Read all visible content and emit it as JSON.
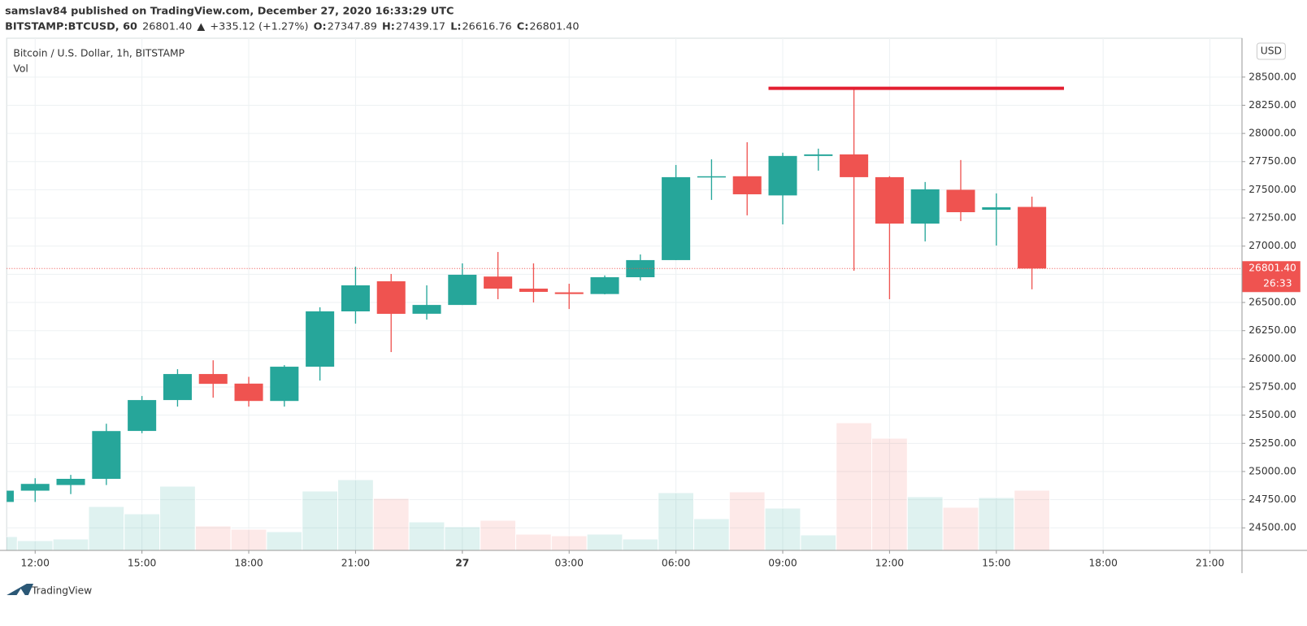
{
  "header": {
    "publisher": "samslav84 published on TradingView.com, December 27, 2020 16:33:29 UTC",
    "symbol": "BITSTAMP:BTCUSD, 60",
    "last": "26801.40",
    "arrow": "▲",
    "change": "+335.12 (+1.27%)",
    "o_label": "O:",
    "o": "27347.89",
    "h_label": "H:",
    "h": "27439.17",
    "l_label": "L:",
    "l": "26616.76",
    "c_label": "C:",
    "c": "26801.40"
  },
  "chart_data": {
    "type": "candlestick",
    "legend_title": "Bitcoin / U.S. Dollar, 1h, BITSTAMP",
    "volume_label": "Vol",
    "currency": "USD",
    "countdown": "26:33",
    "x": [
      11,
      12,
      13,
      14,
      15,
      16,
      17,
      18,
      19,
      20,
      21,
      22,
      23,
      24,
      25,
      26,
      27,
      28,
      29,
      30,
      31,
      32,
      33,
      34,
      35,
      36,
      37,
      38,
      39,
      40
    ],
    "open": [
      24730,
      24830,
      24880,
      24935,
      25360,
      25634,
      25865,
      25780,
      25626,
      25930,
      26421,
      26688,
      26400,
      26478,
      26730,
      26623,
      26590,
      26575,
      26724,
      26876,
      27612,
      27620,
      27450,
      27800,
      27814,
      27612,
      27200,
      27500,
      27323,
      27347.89
    ],
    "high": [
      24850,
      24940,
      24970,
      25424,
      25670,
      25908,
      25987,
      25840,
      25944,
      26457,
      26818,
      26753,
      26652,
      26847,
      26948,
      26847,
      26666,
      26740,
      26926,
      27720,
      27770,
      27922,
      27829,
      27865,
      28406,
      27620,
      27569,
      27764,
      27468,
      27439.17
    ],
    "low": [
      24720,
      24730,
      24800,
      24880,
      25340,
      25576,
      25655,
      25576,
      25576,
      25807,
      26312,
      26060,
      26348,
      26478,
      26529,
      26500,
      26442,
      26572,
      26695,
      26876,
      27410,
      27273,
      27193,
      27670,
      26782,
      26529,
      27042,
      27222,
      27005,
      26616.76
    ],
    "close": [
      24830,
      24890,
      24935,
      25359,
      25634,
      25865,
      25778,
      25626,
      25930,
      26421,
      26652,
      26399,
      26478,
      26746,
      26623,
      26594,
      26575,
      26724,
      26876,
      27612,
      27620,
      27460,
      27800,
      27814,
      27612,
      27200,
      27504,
      27301,
      27345,
      26801.4
    ],
    "close_label": "26801.40",
    "volume": [
      17,
      12,
      14,
      54,
      45,
      79,
      30,
      26,
      23,
      73,
      87,
      64,
      35,
      29,
      37,
      20,
      18,
      20,
      14,
      71,
      39,
      72,
      52,
      19,
      157,
      138,
      66,
      53,
      65,
      74
    ],
    "up_color": "#26a69a",
    "down_color": "#ef5350",
    "xlim": [
      11.2,
      45.9
    ],
    "xticks": [
      {
        "value": 12,
        "label": "12:00"
      },
      {
        "value": 15,
        "label": "15:00"
      },
      {
        "value": 18,
        "label": "18:00"
      },
      {
        "value": 21,
        "label": "21:00"
      },
      {
        "value": 24,
        "label": "27"
      },
      {
        "value": 27,
        "label": "03:00"
      },
      {
        "value": 30,
        "label": "06:00"
      },
      {
        "value": 33,
        "label": "09:00"
      },
      {
        "value": 36,
        "label": "12:00"
      },
      {
        "value": 39,
        "label": "15:00"
      },
      {
        "value": 42,
        "label": "18:00"
      },
      {
        "value": 45,
        "label": "21:00"
      }
    ],
    "ylim": [
      24300,
      28845
    ],
    "yticks": [
      {
        "value": 24500,
        "label": "24500.00"
      },
      {
        "value": 24750,
        "label": "24750.00"
      },
      {
        "value": 25000,
        "label": "25000.00"
      },
      {
        "value": 25250,
        "label": "25250.00"
      },
      {
        "value": 25500,
        "label": "25500.00"
      },
      {
        "value": 25750,
        "label": "25750.00"
      },
      {
        "value": 26000,
        "label": "26000.00"
      },
      {
        "value": 26250,
        "label": "26250.00"
      },
      {
        "value": 26500,
        "label": "26500.00"
      },
      {
        "value": 26750,
        "label": "26750.00"
      },
      {
        "value": 27000,
        "label": "27000.00"
      },
      {
        "value": 27250,
        "label": "27250.00"
      },
      {
        "value": 27500,
        "label": "27500.00"
      },
      {
        "value": 27750,
        "label": "27750.00"
      },
      {
        "value": 28000,
        "label": "28000.00"
      },
      {
        "value": 28250,
        "label": "28250.00"
      },
      {
        "value": 28500,
        "label": "28500.00"
      }
    ],
    "grid": true,
    "hline": {
      "value": 28400,
      "from": 32.6,
      "to": 40.9,
      "color": "#e31e30"
    }
  },
  "footer": {
    "logo": "TradingView"
  }
}
